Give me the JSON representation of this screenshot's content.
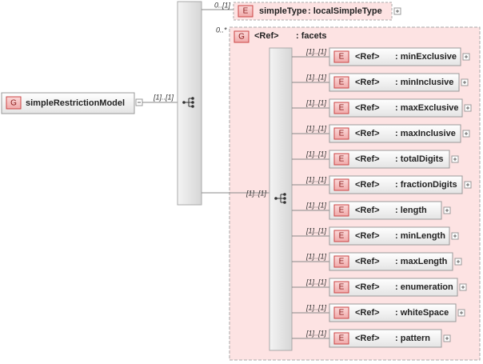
{
  "root": {
    "badge": "G",
    "name": "simpleRestrictionModel",
    "cardinality": "[1]..[1]"
  },
  "simple_type": {
    "cardinality": "0..[1]",
    "badge": "E",
    "name": "simpleType",
    "type": ": localSimpleType"
  },
  "facets_group": {
    "cardinality": "0..*",
    "badge": "G",
    "ref": "<Ref>",
    "name": ": facets",
    "sequence_cardinality": "[1]..[1]",
    "items": [
      {
        "cardinality": "[1]..[1]",
        "badge": "E",
        "ref": "<Ref>",
        "name": ": minExclusive"
      },
      {
        "cardinality": "[1]..[1]",
        "badge": "E",
        "ref": "<Ref>",
        "name": ": minInclusive"
      },
      {
        "cardinality": "[1]..[1]",
        "badge": "E",
        "ref": "<Ref>",
        "name": ": maxExclusive"
      },
      {
        "cardinality": "[1]..[1]",
        "badge": "E",
        "ref": "<Ref>",
        "name": ": maxInclusive"
      },
      {
        "cardinality": "[1]..[1]",
        "badge": "E",
        "ref": "<Ref>",
        "name": ": totalDigits"
      },
      {
        "cardinality": "[1]..[1]",
        "badge": "E",
        "ref": "<Ref>",
        "name": ": fractionDigits"
      },
      {
        "cardinality": "[1]..[1]",
        "badge": "E",
        "ref": "<Ref>",
        "name": ": length"
      },
      {
        "cardinality": "[1]..[1]",
        "badge": "E",
        "ref": "<Ref>",
        "name": ": minLength"
      },
      {
        "cardinality": "[1]..[1]",
        "badge": "E",
        "ref": "<Ref>",
        "name": ": maxLength"
      },
      {
        "cardinality": "[1]..[1]",
        "badge": "E",
        "ref": "<Ref>",
        "name": ": enumeration"
      },
      {
        "cardinality": "[1]..[1]",
        "badge": "E",
        "ref": "<Ref>",
        "name": ": whiteSpace"
      },
      {
        "cardinality": "[1]..[1]",
        "badge": "E",
        "ref": "<Ref>",
        "name": ": pattern"
      }
    ]
  }
}
